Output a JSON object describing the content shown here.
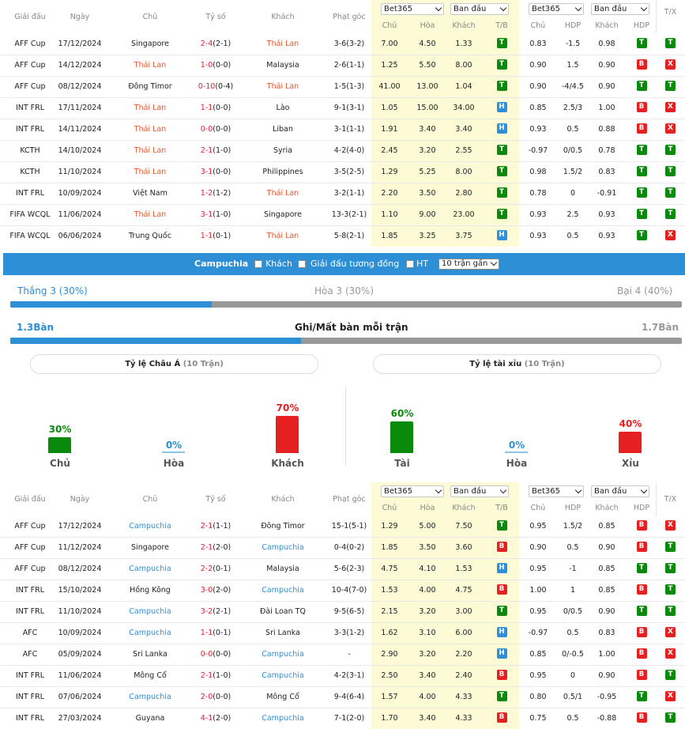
{
  "tables": {
    "header": {
      "league": "Giải đấu",
      "date": "Ngày",
      "home": "Chủ",
      "score": "Tỷ số",
      "away": "Khách",
      "corner": "Phạt góc",
      "bookmaker": "Bet365",
      "odds_type": "Ban đầu",
      "h_home": "Chủ",
      "h_draw": "Hòa",
      "h_away": "Khách",
      "h_tb": "T/B",
      "h_home2": "Chủ",
      "h_hdp": "HDP",
      "h_away2": "Khách",
      "h_hdp2": "HDP",
      "h_tx": "T/X"
    }
  },
  "table1": [
    {
      "league": "AFF Cup",
      "date": "17/12/2024",
      "home": "Singapore",
      "home_hl": false,
      "score": "2-4",
      "ht": "(2-1)",
      "away": "Thái Lan",
      "away_hl": true,
      "corner": "3-6(3-2)",
      "o1": "7.00",
      "o2": "4.50",
      "o3": "1.33",
      "tb": "T",
      "a1": "0.83",
      "hdp": "-1.5",
      "a2": "0.98",
      "hdpr": "T",
      "tx": "T"
    },
    {
      "league": "AFF Cup",
      "date": "14/12/2024",
      "home": "Thái Lan",
      "home_hl": true,
      "score": "1-0",
      "ht": "(0-0)",
      "away": "Malaysia",
      "away_hl": false,
      "corner": "2-6(1-1)",
      "o1": "1.25",
      "o2": "5.50",
      "o3": "8.00",
      "tb": "T",
      "a1": "0.90",
      "hdp": "1.5",
      "a2": "0.90",
      "hdpr": "B",
      "tx": "X"
    },
    {
      "league": "AFF Cup",
      "date": "08/12/2024",
      "home": "Đông Timor",
      "home_hl": false,
      "score": "0-10",
      "ht": "(0-4)",
      "away": "Thái Lan",
      "away_hl": true,
      "corner": "1-5(1-3)",
      "o1": "41.00",
      "o2": "13.00",
      "o3": "1.04",
      "tb": "T",
      "a1": "0.90",
      "hdp": "-4/4.5",
      "a2": "0.90",
      "hdpr": "T",
      "tx": "T"
    },
    {
      "league": "INT FRL",
      "date": "17/11/2024",
      "home": "Thái Lan",
      "home_hl": true,
      "score": "1-1",
      "ht": "(0-0)",
      "away": "Lào",
      "away_hl": false,
      "corner": "9-1(3-1)",
      "o1": "1.05",
      "o2": "15.00",
      "o3": "34.00",
      "tb": "H",
      "a1": "0.85",
      "hdp": "2.5/3",
      "a2": "1.00",
      "hdpr": "B",
      "tx": "X"
    },
    {
      "league": "INT FRL",
      "date": "14/11/2024",
      "home": "Thái Lan",
      "home_hl": true,
      "score": "0-0",
      "ht": "(0-0)",
      "away": "Liban",
      "away_hl": false,
      "corner": "3-1(1-1)",
      "o1": "1.91",
      "o2": "3.40",
      "o3": "3.40",
      "tb": "H",
      "a1": "0.93",
      "hdp": "0.5",
      "a2": "0.88",
      "hdpr": "B",
      "tx": "X"
    },
    {
      "league": "KCTH",
      "date": "14/10/2024",
      "home": "Thái Lan",
      "home_hl": true,
      "score": "2-1",
      "ht": "(1-0)",
      "away": "Syria",
      "away_hl": false,
      "corner": "4-2(4-0)",
      "o1": "2.45",
      "o2": "3.20",
      "o3": "2.55",
      "tb": "T",
      "a1": "-0.97",
      "hdp": "0/0.5",
      "a2": "0.78",
      "hdpr": "T",
      "tx": "T"
    },
    {
      "league": "KCTH",
      "date": "11/10/2024",
      "home": "Thái Lan",
      "home_hl": true,
      "score": "3-1",
      "ht": "(0-0)",
      "away": "Philippines",
      "away_hl": false,
      "corner": "3-5(2-5)",
      "o1": "1.29",
      "o2": "5.25",
      "o3": "8.00",
      "tb": "T",
      "a1": "0.98",
      "hdp": "1.5/2",
      "a2": "0.83",
      "hdpr": "T",
      "tx": "T"
    },
    {
      "league": "INT FRL",
      "date": "10/09/2024",
      "home": "Việt Nam",
      "home_hl": false,
      "score": "1-2",
      "ht": "(1-2)",
      "away": "Thái Lan",
      "away_hl": true,
      "corner": "3-2(1-1)",
      "o1": "2.20",
      "o2": "3.50",
      "o3": "2.80",
      "tb": "T",
      "a1": "0.78",
      "hdp": "0",
      "a2": "-0.91",
      "hdpr": "T",
      "tx": "T"
    },
    {
      "league": "FIFA WCQL",
      "date": "11/06/2024",
      "home": "Thái Lan",
      "home_hl": true,
      "score": "3-1",
      "ht": "(1-0)",
      "away": "Singapore",
      "away_hl": false,
      "corner": "13-3(2-1)",
      "o1": "1.10",
      "o2": "9.00",
      "o3": "23.00",
      "tb": "T",
      "a1": "0.93",
      "hdp": "2.5",
      "a2": "0.93",
      "hdpr": "T",
      "tx": "T"
    },
    {
      "league": "FIFA WCQL",
      "date": "06/06/2024",
      "home": "Trung Quốc",
      "home_hl": false,
      "score": "1-1",
      "ht": "(0-1)",
      "away": "Thái Lan",
      "away_hl": true,
      "corner": "5-8(2-1)",
      "o1": "1.85",
      "o2": "3.25",
      "o3": "3.75",
      "tb": "H",
      "a1": "0.93",
      "hdp": "0.5",
      "a2": "0.93",
      "hdpr": "T",
      "tx": "X"
    }
  ],
  "filter": {
    "team": "Campuchia",
    "opt_away": "Khách",
    "opt_same_league": "Giải đấu tương đồng",
    "opt_ht": "HT",
    "recent": "10 trận gần"
  },
  "stats": {
    "win": "Thắng 3 (30%)",
    "draw": "Hòa 3 (30%)",
    "loss": "Bại 4 (40%)",
    "win_frac": 0.3,
    "goals_for": "1.3Bàn",
    "goals_title": "Ghi/Mất bàn mỗi trận",
    "goals_against": "1.7Bàn",
    "goals_frac": 0.433,
    "asian_title": "Tỷ lệ Châu Á",
    "asian_sub": "(10 Trận)",
    "ou_title": "Tỷ lệ tài xỉu",
    "ou_sub": "(10 Trận)",
    "asian": [
      {
        "pct": "30%",
        "label": "Chủ",
        "value": 30,
        "color": "#0a8a0a"
      },
      {
        "pct": "0%",
        "label": "Hòa",
        "value": 0,
        "color": "#2d8fd5"
      },
      {
        "pct": "70%",
        "label": "Khách",
        "value": 70,
        "color": "#e62020"
      }
    ],
    "ou": [
      {
        "pct": "60%",
        "label": "Tài",
        "value": 60,
        "color": "#0a8a0a"
      },
      {
        "pct": "0%",
        "label": "Hòa",
        "value": 0,
        "color": "#2d8fd5"
      },
      {
        "pct": "40%",
        "label": "Xỉu",
        "value": 40,
        "color": "#e62020"
      }
    ]
  },
  "table2": [
    {
      "league": "AFF Cup",
      "date": "17/12/2024",
      "home": "Campuchia",
      "home_hl": true,
      "score": "2-1",
      "ht": "(1-1)",
      "away": "Đông Timor",
      "away_hl": false,
      "corner": "15-1(5-1)",
      "o1": "1.29",
      "o2": "5.00",
      "o3": "7.50",
      "tb": "T",
      "a1": "0.95",
      "hdp": "1.5/2",
      "a2": "0.85",
      "hdpr": "B",
      "tx": "X"
    },
    {
      "league": "AFF Cup",
      "date": "11/12/2024",
      "home": "Singapore",
      "home_hl": false,
      "score": "2-1",
      "ht": "(2-0)",
      "away": "Campuchia",
      "away_hl": true,
      "corner": "0-4(0-2)",
      "o1": "1.85",
      "o2": "3.50",
      "o3": "3.60",
      "tb": "B",
      "a1": "0.90",
      "hdp": "0.5",
      "a2": "0.90",
      "hdpr": "B",
      "tx": "T"
    },
    {
      "league": "AFF Cup",
      "date": "08/12/2024",
      "home": "Campuchia",
      "home_hl": true,
      "score": "2-2",
      "ht": "(0-1)",
      "away": "Malaysia",
      "away_hl": false,
      "corner": "5-6(2-3)",
      "o1": "4.75",
      "o2": "4.10",
      "o3": "1.53",
      "tb": "H",
      "a1": "0.95",
      "hdp": "-1",
      "a2": "0.85",
      "hdpr": "T",
      "tx": "T"
    },
    {
      "league": "INT FRL",
      "date": "15/10/2024",
      "home": "Hồng Kông",
      "home_hl": false,
      "score": "3-0",
      "ht": "(2-0)",
      "away": "Campuchia",
      "away_hl": true,
      "corner": "10-4(7-0)",
      "o1": "1.53",
      "o2": "4.00",
      "o3": "4.75",
      "tb": "B",
      "a1": "1.00",
      "hdp": "1",
      "a2": "0.85",
      "hdpr": "B",
      "tx": "T"
    },
    {
      "league": "INT FRL",
      "date": "11/10/2024",
      "home": "Campuchia",
      "home_hl": true,
      "score": "3-2",
      "ht": "(2-1)",
      "away": "Đài Loan TQ",
      "away_hl": false,
      "corner": "9-5(6-5)",
      "o1": "2.15",
      "o2": "3.20",
      "o3": "3.00",
      "tb": "T",
      "a1": "0.95",
      "hdp": "0/0.5",
      "a2": "0.90",
      "hdpr": "T",
      "tx": "T"
    },
    {
      "league": "AFC",
      "date": "10/09/2024",
      "home": "Campuchia",
      "home_hl": true,
      "score": "1-1",
      "ht": "(0-1)",
      "away": "Sri Lanka",
      "away_hl": false,
      "corner": "3-3(1-2)",
      "o1": "1.62",
      "o2": "3.10",
      "o3": "6.00",
      "tb": "H",
      "a1": "-0.97",
      "hdp": "0.5",
      "a2": "0.83",
      "hdpr": "B",
      "tx": "X"
    },
    {
      "league": "AFC",
      "date": "05/09/2024",
      "home": "Sri Lanka",
      "home_hl": false,
      "score": "0-0",
      "ht": "(0-0)",
      "away": "Campuchia",
      "away_hl": true,
      "corner": "-",
      "o1": "2.90",
      "o2": "3.20",
      "o3": "2.20",
      "tb": "H",
      "a1": "0.85",
      "hdp": "0/-0.5",
      "a2": "1.00",
      "hdpr": "B",
      "tx": "X"
    },
    {
      "league": "INT FRL",
      "date": "11/06/2024",
      "home": "Mông Cổ",
      "home_hl": false,
      "score": "2-1",
      "ht": "(1-0)",
      "away": "Campuchia",
      "away_hl": true,
      "corner": "4-2(3-1)",
      "o1": "2.50",
      "o2": "3.40",
      "o3": "2.40",
      "tb": "B",
      "a1": "0.95",
      "hdp": "0",
      "a2": "0.90",
      "hdpr": "B",
      "tx": "T"
    },
    {
      "league": "INT FRL",
      "date": "07/06/2024",
      "home": "Campuchia",
      "home_hl": true,
      "score": "2-0",
      "ht": "(0-0)",
      "away": "Mông Cổ",
      "away_hl": false,
      "corner": "9-4(6-4)",
      "o1": "1.57",
      "o2": "4.00",
      "o3": "4.33",
      "tb": "T",
      "a1": "0.80",
      "hdp": "0.5/1",
      "a2": "-0.95",
      "hdpr": "T",
      "tx": "X"
    },
    {
      "league": "INT FRL",
      "date": "27/03/2024",
      "home": "Guyana",
      "home_hl": false,
      "score": "4-1",
      "ht": "(2-0)",
      "away": "Campuchia",
      "away_hl": true,
      "corner": "7-1(2-0)",
      "o1": "1.70",
      "o2": "3.40",
      "o3": "4.33",
      "tb": "B",
      "a1": "0.75",
      "hdp": "0.5",
      "a2": "-0.88",
      "hdpr": "B",
      "tx": "T"
    }
  ]
}
